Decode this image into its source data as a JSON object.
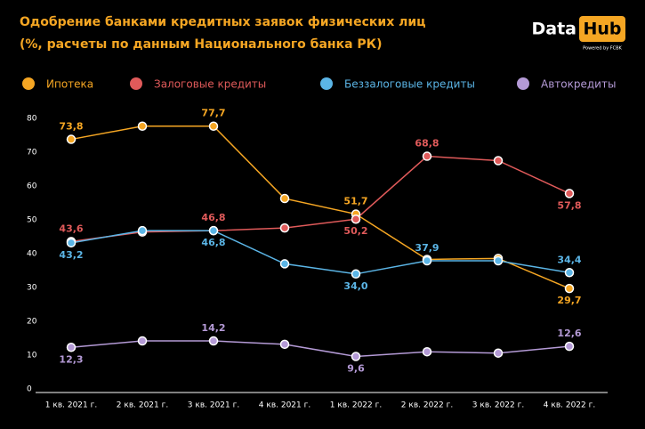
{
  "chart_data": {
    "type": "line",
    "title": "Одобрение банками кредитных заявок физических лиц",
    "subtitle": "(%, расчеты по данным Национального банка РК)",
    "logo": {
      "left": "Data",
      "right": "Hub",
      "note": "Powered by FCBK"
    },
    "categories": [
      "1 кв. 2021 г.",
      "2 кв. 2021 г.",
      "3 кв. 2021 г.",
      "4 кв. 2021 г.",
      "1 кв. 2022 г.",
      "2 кв. 2022 г.",
      "3 кв. 2022 г.",
      "4 кв. 2022 г."
    ],
    "ylim": [
      0,
      80
    ],
    "yticks": [
      0,
      10,
      20,
      30,
      40,
      50,
      60,
      70,
      80
    ],
    "grid": false,
    "legend": "top",
    "series": [
      {
        "name": "Ипотека",
        "color": "#f5a623",
        "values": [
          73.8,
          77.7,
          77.7,
          56.3,
          51.7,
          38.3,
          38.6,
          29.7
        ],
        "value_labels": [
          "73,8",
          null,
          "77,7",
          null,
          "51,7",
          null,
          null,
          "29,7"
        ]
      },
      {
        "name": "Залоговые кредиты",
        "color": "#e05a5a",
        "values": [
          43.6,
          46.4,
          46.8,
          47.6,
          50.2,
          68.8,
          67.5,
          57.8
        ],
        "value_labels": [
          "43,6",
          null,
          "46,8",
          null,
          "50,2",
          "68,8",
          null,
          "57,8"
        ]
      },
      {
        "name": "Беззалоговые кредиты",
        "color": "#5bb5e6",
        "values": [
          43.2,
          46.8,
          46.8,
          37.0,
          34.0,
          37.9,
          37.9,
          34.4
        ],
        "value_labels": [
          "43,2",
          null,
          "46,8",
          null,
          "34,0",
          "37,9",
          null,
          "34,4"
        ]
      },
      {
        "name": "Автокредиты",
        "color": "#b49ad6",
        "values": [
          12.3,
          14.2,
          14.2,
          13.2,
          9.6,
          11.0,
          10.6,
          12.6
        ],
        "value_labels": [
          "12,3",
          null,
          "14,2",
          null,
          "9,6",
          null,
          null,
          "12,6"
        ]
      }
    ]
  }
}
